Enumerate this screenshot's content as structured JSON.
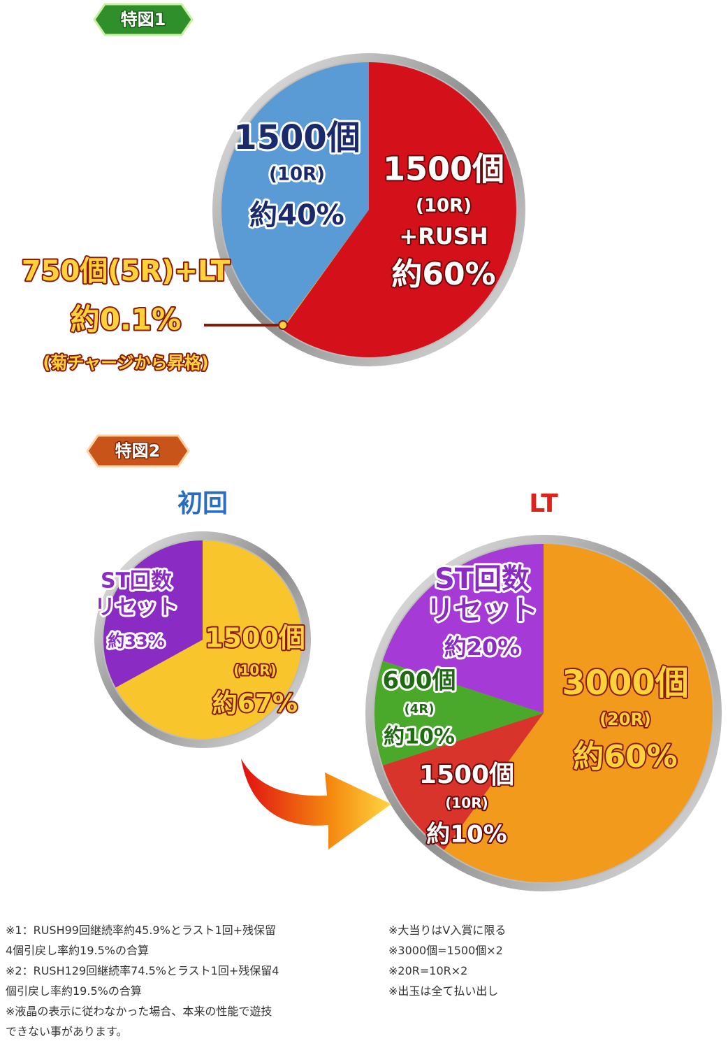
{
  "sections": [
    "特図1",
    "特図2"
  ],
  "chart_data": [
    {
      "type": "pie",
      "categories": [
        [
          "1500個",
          "(10R)",
          "+RUSH"
        ],
        [
          "750個(5R)+LT"
        ],
        [
          "1500個",
          "(10R)"
        ]
      ],
      "category_notes": [
        null,
        "(菊チャージから昇格)",
        null
      ],
      "values": [
        60,
        0.1,
        40
      ],
      "value_labels": [
        "約60%",
        "約0.1%",
        "約40%"
      ],
      "colors": [
        "#d4101a",
        "#f0b020",
        "#5b9bd5"
      ]
    },
    {
      "type": "pie",
      "title": "初回",
      "categories": [
        [
          "1500個",
          "(10R)"
        ],
        [
          "ST回数",
          "リセット"
        ]
      ],
      "values": [
        67,
        33
      ],
      "value_labels": [
        "約67%",
        "約33%"
      ],
      "colors": [
        "#f9c52c",
        "#8a2cc4"
      ]
    },
    {
      "type": "pie",
      "title": "LT",
      "categories": [
        [
          "3000個",
          "(20R)"
        ],
        [
          "1500個",
          "(10R)"
        ],
        [
          "600個",
          "(4R)"
        ],
        [
          "ST回数",
          "リセット"
        ]
      ],
      "values": [
        60,
        10,
        10,
        20
      ],
      "value_labels": [
        "約60%",
        "約10%",
        "約10%",
        "約20%"
      ],
      "colors": [
        "#f29a1c",
        "#d9342c",
        "#4aa82a",
        "#a53ad6"
      ]
    }
  ],
  "notes_left": [
    "※1：RUSH99回継続率約45.9%とラスト1回+残保留",
    "4個引戻し率約19.5%の合算",
    "※2：RUSH129回継続率74.5%とラスト1回+残保留4",
    "個引戻し率約19.5%の合算",
    "※液晶の表示に従わなかった場合、本来の性能で遊技",
    "できない事があります。"
  ],
  "notes_right": [
    "※大当りはV入賞に限る",
    "※3000個=1500個×2",
    "※20R=10R×2",
    "※出玉は全て払い出し"
  ]
}
